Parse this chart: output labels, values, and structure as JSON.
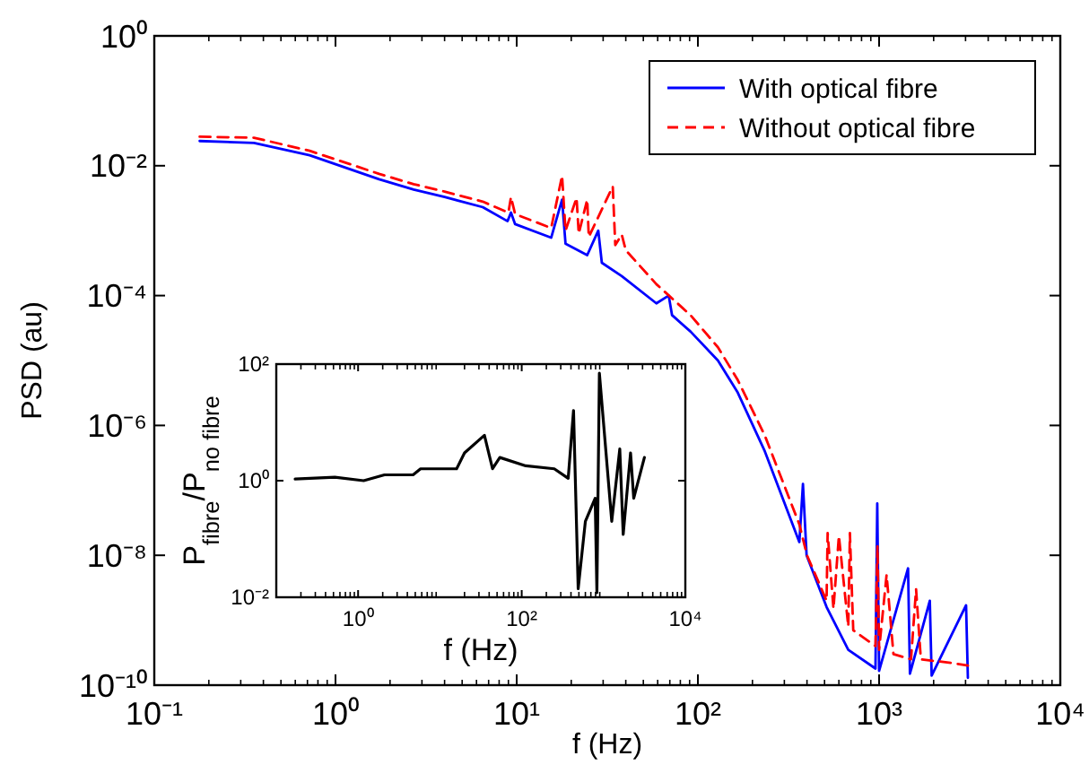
{
  "chart_data": [
    {
      "type": "line",
      "xlabel": "f (Hz)",
      "ylabel": "PSD (au)",
      "log": "xy",
      "legend": "top right",
      "grid": false,
      "xlim": [
        0.1,
        10000
      ],
      "xticks": [
        {
          "value": 0.1,
          "label": "10⁻¹"
        },
        {
          "value": 1,
          "label": "10⁰"
        },
        {
          "value": 10,
          "label": "10¹"
        },
        {
          "value": 100,
          "label": "10²"
        },
        {
          "value": 1000,
          "label": "10³"
        },
        {
          "value": 10000,
          "label": "10⁴"
        }
      ],
      "ylim": [
        1e-10,
        1
      ],
      "yticks": [
        {
          "value": 1e-10,
          "label": "10⁻¹⁰"
        },
        {
          "value": 1e-08,
          "label": "10⁻⁸"
        },
        {
          "value": 1e-06,
          "label": "10⁻⁶"
        },
        {
          "value": 0.0001,
          "label": "10⁻⁴"
        },
        {
          "value": 0.01,
          "label": "10⁻²"
        },
        {
          "value": 1,
          "label": "10⁰"
        }
      ],
      "series": [
        {
          "name": "With optical fibre",
          "color": "#0000ff",
          "line_style": "solid",
          "x": [
            0.178,
            0.355,
            0.72,
            1.74,
            2.7,
            4.0,
            6.5,
            8.9,
            9.3,
            9.8,
            15.5,
            17.8,
            18.6,
            24.5,
            28.2,
            29.5,
            38,
            59,
            69,
            72,
            91,
            129,
            166,
            234,
            363,
            380,
            398,
            513,
            676,
            955,
            977,
            1000,
            1445,
            1480,
            1905,
            1950,
            3020,
            3090
          ],
          "values": [
            0.024,
            0.0224,
            0.0145,
            0.0062,
            0.0043,
            0.0033,
            0.0023,
            0.0014,
            0.0019,
            0.00126,
            0.00078,
            0.003,
            0.00063,
            0.00042,
            0.001,
            0.00032,
            0.0002,
            7.6e-05,
            0.0001,
            5e-05,
            2.8e-05,
            1e-05,
            3.2e-06,
            4e-07,
            1.6e-08,
            1.26e-07,
            1e-08,
            1.6e-09,
            3.5e-10,
            1.8e-10,
            6.3e-08,
            1.66e-10,
            6.3e-09,
            1.5e-10,
            2e-09,
            1.4e-10,
            1.7e-09,
            1.3e-10
          ]
        },
        {
          "name": "Without optical fibre",
          "color": "#ff0000",
          "line_style": "dashed",
          "x": [
            0.178,
            0.355,
            0.72,
            1.74,
            2.7,
            4.0,
            6.5,
            9.0,
            9.3,
            9.8,
            15.5,
            17.8,
            18.6,
            21.4,
            22,
            24.5,
            25,
            33.9,
            35,
            38,
            40,
            59,
            91,
            129,
            166,
            234,
            363,
            400,
            513,
            520,
            560,
            600,
            676,
            690,
            720,
            955,
            980,
            1000,
            1100,
            1200,
            1500,
            1600,
            1700,
            2500,
            3090
          ],
          "values": [
            0.028,
            0.027,
            0.017,
            0.0075,
            0.0052,
            0.004,
            0.0028,
            0.0019,
            0.0033,
            0.0018,
            0.0011,
            0.007,
            0.001,
            0.0032,
            0.0009,
            0.003,
            0.0008,
            0.0048,
            0.0006,
            0.00087,
            0.0005,
            0.00015,
            5e-05,
            1.6e-05,
            5e-06,
            7e-07,
            3e-08,
            1e-08,
            2e-09,
            2.2e-08,
            1.5e-09,
            2e-08,
            8e-10,
            2.2e-08,
            7e-10,
            4e-10,
            1.4e-08,
            3.5e-10,
            5e-09,
            3e-10,
            2.5e-10,
            3e-09,
            2.5e-10,
            2.2e-10,
            2e-10
          ]
        }
      ]
    },
    {
      "type": "line",
      "xlabel": "f (Hz)",
      "ylabel": "P$_{fibre}$/P$_{no fibre}$",
      "log": "xy",
      "grid": false,
      "xlim": [
        0.1,
        10000
      ],
      "xticks": [
        {
          "value": 1,
          "label": "10⁰"
        },
        {
          "value": 100,
          "label": "10²"
        },
        {
          "value": 10000,
          "label": "10⁴"
        }
      ],
      "ylim": [
        0.01,
        100
      ],
      "yticks": [
        {
          "value": 0.01,
          "label": "10⁻²"
        },
        {
          "value": 1,
          "label": "10⁰"
        },
        {
          "value": 100,
          "label": "10²"
        }
      ],
      "series": [
        {
          "color": "#000000",
          "line_style": "solid",
          "x": [
            0.17,
            0.52,
            1.17,
            2.1,
            4.7,
            5.8,
            16,
            20,
            35,
            44,
            54,
            112,
            250,
            370,
            430,
            490,
            600,
            790,
            830,
            890,
            1260,
            1580,
            1740,
            2140,
            2340,
            3160
          ],
          "values": [
            1.07,
            1.15,
            1.0,
            1.26,
            1.26,
            1.6,
            1.6,
            3,
            6,
            1.6,
            2.5,
            1.8,
            1.6,
            1.1,
            16,
            0.014,
            0.2,
            0.5,
            0.012,
            70,
            0.2,
            3.5,
            0.12,
            3,
            0.5,
            2.5
          ]
        }
      ]
    }
  ]
}
